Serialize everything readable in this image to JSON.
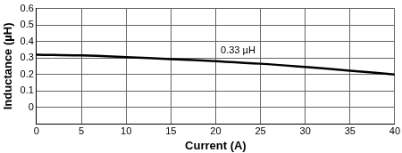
{
  "chart_data": {
    "type": "line",
    "x_label": "Current (A)",
    "y_label": "Inductance (µH)",
    "x": [
      0,
      5,
      10,
      15,
      20,
      25,
      30,
      35,
      40
    ],
    "series": [
      {
        "name": "0.33 µH",
        "color": "#000000",
        "values": [
          0.32,
          0.315,
          0.305,
          0.293,
          0.28,
          0.265,
          0.245,
          0.223,
          0.2
        ]
      }
    ],
    "annotations": [
      {
        "text": "0.33 µH",
        "x": 22.5,
        "y": 0.315
      }
    ],
    "xlim": [
      0,
      40
    ],
    "xticks": [
      0,
      5,
      10,
      15,
      20,
      25,
      30,
      35,
      40
    ],
    "ylim": [
      -0.1,
      0.6
    ],
    "yticks": [
      0,
      0.1,
      0.2,
      0.3,
      0.4,
      0.5,
      0.6
    ],
    "grid": true,
    "legend": "none"
  }
}
